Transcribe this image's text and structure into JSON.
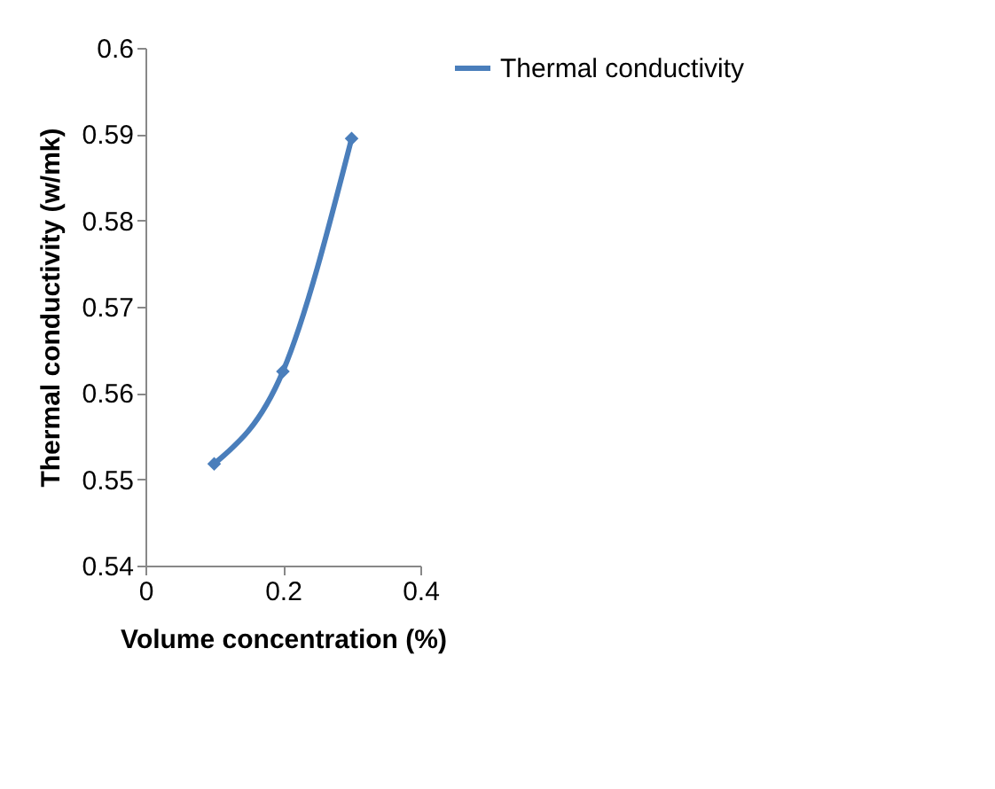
{
  "chart_data": {
    "type": "line",
    "xlabel": "Volume concentration (%)",
    "ylabel": "Thermal conductivity (w/mk)",
    "x": [
      0.1,
      0.2,
      0.3
    ],
    "series": [
      {
        "name": "Thermal conductivity",
        "color": "#4a7ebb",
        "values": [
          0.5518,
          0.5625,
          0.5895
        ]
      }
    ],
    "xlim": [
      0,
      0.4
    ],
    "xticks": [
      0,
      0.2,
      0.4
    ],
    "ylim": [
      0.54,
      0.6
    ],
    "yticks": [
      0.54,
      0.55,
      0.56,
      0.57,
      0.58,
      0.59,
      0.6
    ],
    "grid": false,
    "legend": "right",
    "marker": "diamond",
    "line_style": "solid"
  }
}
